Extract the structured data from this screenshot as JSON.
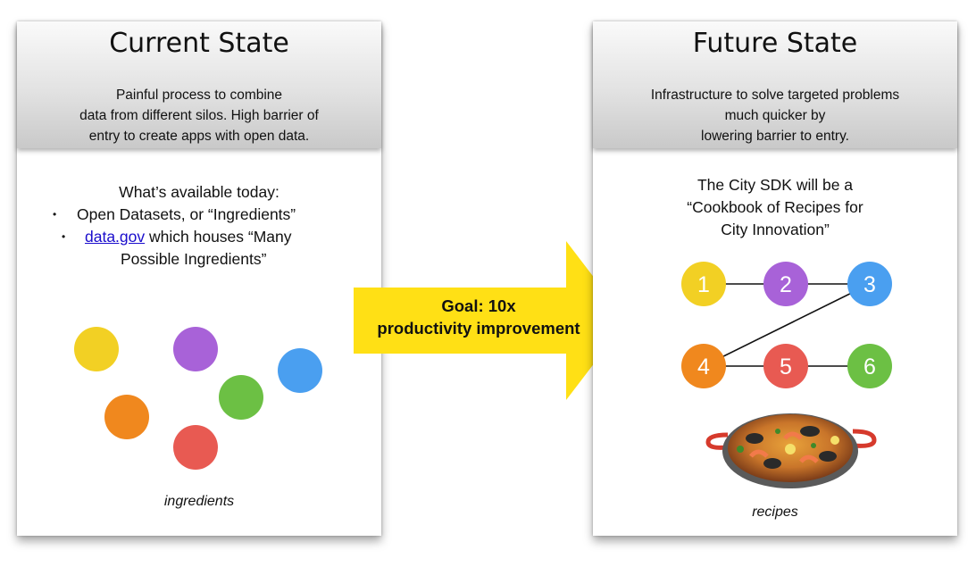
{
  "current": {
    "title": "Current State",
    "desc_lines": [
      "Painful process to combine",
      "data from different silos.  High barrier of",
      "entry to create apps with open data."
    ],
    "available_title": "What’s available today:",
    "bullets": [
      {
        "text": "Open Datasets, or “Ingredients”"
      },
      {
        "link": "data.gov",
        "text": " which houses “Many",
        "text2": "Possible Ingredients”"
      }
    ],
    "caption": "ingredients",
    "dots": [
      {
        "color": "#f2d024"
      },
      {
        "color": "#a862d8"
      },
      {
        "color": "#4a9ff0"
      },
      {
        "color": "#6cc044"
      },
      {
        "color": "#f0881e"
      },
      {
        "color": "#e85a52"
      }
    ]
  },
  "arrow": {
    "lines": [
      "Goal: 10x",
      "productivity improvement"
    ],
    "color": "#ffe015"
  },
  "future": {
    "title": "Future State",
    "desc_lines": [
      "Infrastructure to solve targeted problems",
      "much quicker by",
      "lowering barrier to entry."
    ],
    "sdk_lines": [
      "The City SDK will be a",
      "“Cookbook of Recipes for",
      "City Innovation”"
    ],
    "nodes": [
      {
        "label": "1",
        "color": "#f2d024"
      },
      {
        "label": "2",
        "color": "#a862d8"
      },
      {
        "label": "3",
        "color": "#4a9ff0"
      },
      {
        "label": "4",
        "color": "#f0881e"
      },
      {
        "label": "5",
        "color": "#e85a52"
      },
      {
        "label": "6",
        "color": "#6cc044"
      }
    ],
    "caption": "recipes"
  }
}
